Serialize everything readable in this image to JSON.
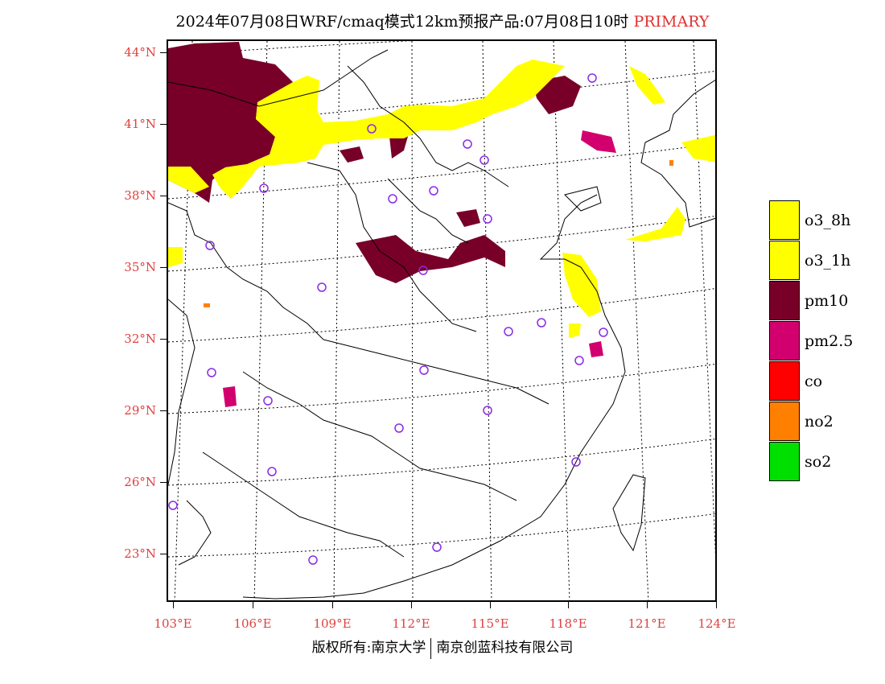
{
  "title": {
    "main": "2024年07月08日WRF/cmaq模式12km预报产品:07月08日10时",
    "tag": "PRIMARY"
  },
  "axes": {
    "lat_labels": [
      "44°N",
      "41°N",
      "38°N",
      "35°N",
      "32°N",
      "29°N",
      "26°N",
      "23°N"
    ],
    "lon_labels": [
      "103°E",
      "106°E",
      "109°E",
      "112°E",
      "115°E",
      "118°E",
      "121°E",
      "124°E"
    ]
  },
  "legend": {
    "items": [
      {
        "label": "o3_8h",
        "color": "#ffff00"
      },
      {
        "label": "o3_1h",
        "color": "#ffff00"
      },
      {
        "label": "pm10",
        "color": "#780028"
      },
      {
        "label": "pm2.5",
        "color": "#d2006e"
      },
      {
        "label": "co",
        "color": "#ff0000"
      },
      {
        "label": "no2",
        "color": "#ff8000"
      },
      {
        "label": "so2",
        "color": "#00e000"
      }
    ]
  },
  "footer": {
    "left": "版权所有:南京大学",
    "right": "南京创蓝科技有限公司"
  },
  "colors": {
    "axis_label": "#e04040",
    "tag": "#e03030",
    "station_marker": "#8a2be2",
    "boundary": "#000000"
  }
}
